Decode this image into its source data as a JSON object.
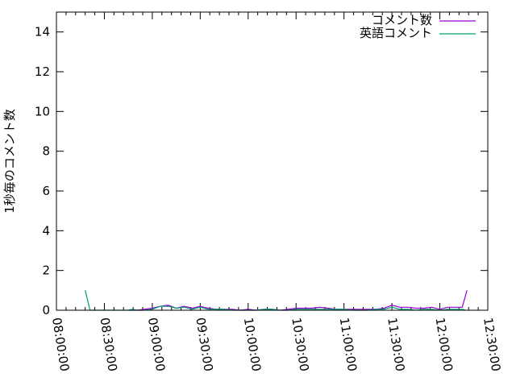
{
  "chart_data": {
    "type": "line",
    "title": "",
    "xlabel": "",
    "ylabel": "1秒毎のコメント数",
    "xlim": [
      "08:00:00",
      "12:30:00"
    ],
    "ylim": [
      0,
      15
    ],
    "x_tick_labels": [
      "08:00:00",
      "08:30:00",
      "09:00:00",
      "09:30:00",
      "10:00:00",
      "10:30:00",
      "11:00:00",
      "11:30:00",
      "12:00:00",
      "12:30:00"
    ],
    "y_tick_labels": [
      "0",
      "2",
      "4",
      "6",
      "8",
      "10",
      "12",
      "14"
    ],
    "grid": false,
    "legend_position": "top-right",
    "series": [
      {
        "name": "コメント数",
        "color": "#9400d3",
        "points": [
          [
            "08:45",
            0
          ],
          [
            "08:50",
            0
          ],
          [
            "08:55",
            0.05
          ],
          [
            "09:00",
            0.1
          ],
          [
            "09:05",
            0.2
          ],
          [
            "09:10",
            0.25
          ],
          [
            "09:15",
            0.1
          ],
          [
            "09:20",
            0.2
          ],
          [
            "09:25",
            0.1
          ],
          [
            "09:30",
            0.2
          ],
          [
            "09:35",
            0.1
          ],
          [
            "09:40",
            0.05
          ],
          [
            "09:45",
            0.05
          ],
          [
            "09:50",
            0.05
          ],
          [
            "09:55",
            0
          ],
          [
            "10:00",
            0.05
          ],
          [
            "10:05",
            0
          ],
          [
            "10:10",
            0.05
          ],
          [
            "10:15",
            0.05
          ],
          [
            "10:20",
            0
          ],
          [
            "10:25",
            0.05
          ],
          [
            "10:30",
            0.1
          ],
          [
            "10:35",
            0.1
          ],
          [
            "10:40",
            0.1
          ],
          [
            "10:45",
            0.15
          ],
          [
            "10:50",
            0.1
          ],
          [
            "10:55",
            0.05
          ],
          [
            "11:00",
            0.05
          ],
          [
            "11:05",
            0.05
          ],
          [
            "11:10",
            0.05
          ],
          [
            "11:15",
            0.05
          ],
          [
            "11:20",
            0.05
          ],
          [
            "11:25",
            0.1
          ],
          [
            "11:30",
            0.25
          ],
          [
            "11:35",
            0.15
          ],
          [
            "11:40",
            0.15
          ],
          [
            "11:45",
            0.1
          ],
          [
            "11:50",
            0.1
          ],
          [
            "11:55",
            0.15
          ],
          [
            "12:00",
            0.05
          ],
          [
            "12:05",
            0.15
          ],
          [
            "12:10",
            0.15
          ],
          [
            "12:14",
            0.15
          ],
          [
            "12:17",
            1
          ]
        ]
      },
      {
        "name": "英語コメント",
        "color": "#009e73",
        "points": [
          [
            "08:18",
            1
          ],
          [
            "08:21",
            0
          ],
          [
            "08:45",
            0
          ],
          [
            "08:48",
            0.05
          ],
          [
            "08:50",
            0
          ],
          [
            "08:55",
            0
          ],
          [
            "09:00",
            0.05
          ],
          [
            "09:05",
            0.2
          ],
          [
            "09:10",
            0.2
          ],
          [
            "09:15",
            0.1
          ],
          [
            "09:20",
            0.15
          ],
          [
            "09:25",
            0.05
          ],
          [
            "09:30",
            0.15
          ],
          [
            "09:35",
            0.05
          ],
          [
            "09:40",
            0.05
          ],
          [
            "09:45",
            0.05
          ],
          [
            "09:50",
            0
          ],
          [
            "09:55",
            0
          ],
          [
            "10:00",
            0
          ],
          [
            "10:05",
            0
          ],
          [
            "10:10",
            0.05
          ],
          [
            "10:15",
            0.05
          ],
          [
            "10:20",
            0
          ],
          [
            "10:25",
            0
          ],
          [
            "10:30",
            0.05
          ],
          [
            "10:35",
            0.05
          ],
          [
            "10:40",
            0.05
          ],
          [
            "10:45",
            0.05
          ],
          [
            "10:50",
            0.05
          ],
          [
            "10:55",
            0.05
          ],
          [
            "11:00",
            0.05
          ],
          [
            "11:05",
            0
          ],
          [
            "11:10",
            0
          ],
          [
            "11:15",
            0
          ],
          [
            "11:20",
            0.05
          ],
          [
            "11:25",
            0.05
          ],
          [
            "11:30",
            0.15
          ],
          [
            "11:35",
            0.05
          ],
          [
            "11:40",
            0.05
          ],
          [
            "11:45",
            0
          ],
          [
            "11:50",
            0.05
          ],
          [
            "11:55",
            0.05
          ],
          [
            "12:00",
            0
          ],
          [
            "12:05",
            0.05
          ],
          [
            "12:10",
            0.05
          ],
          [
            "12:14",
            0.05
          ],
          [
            "12:16",
            0
          ]
        ]
      }
    ]
  }
}
